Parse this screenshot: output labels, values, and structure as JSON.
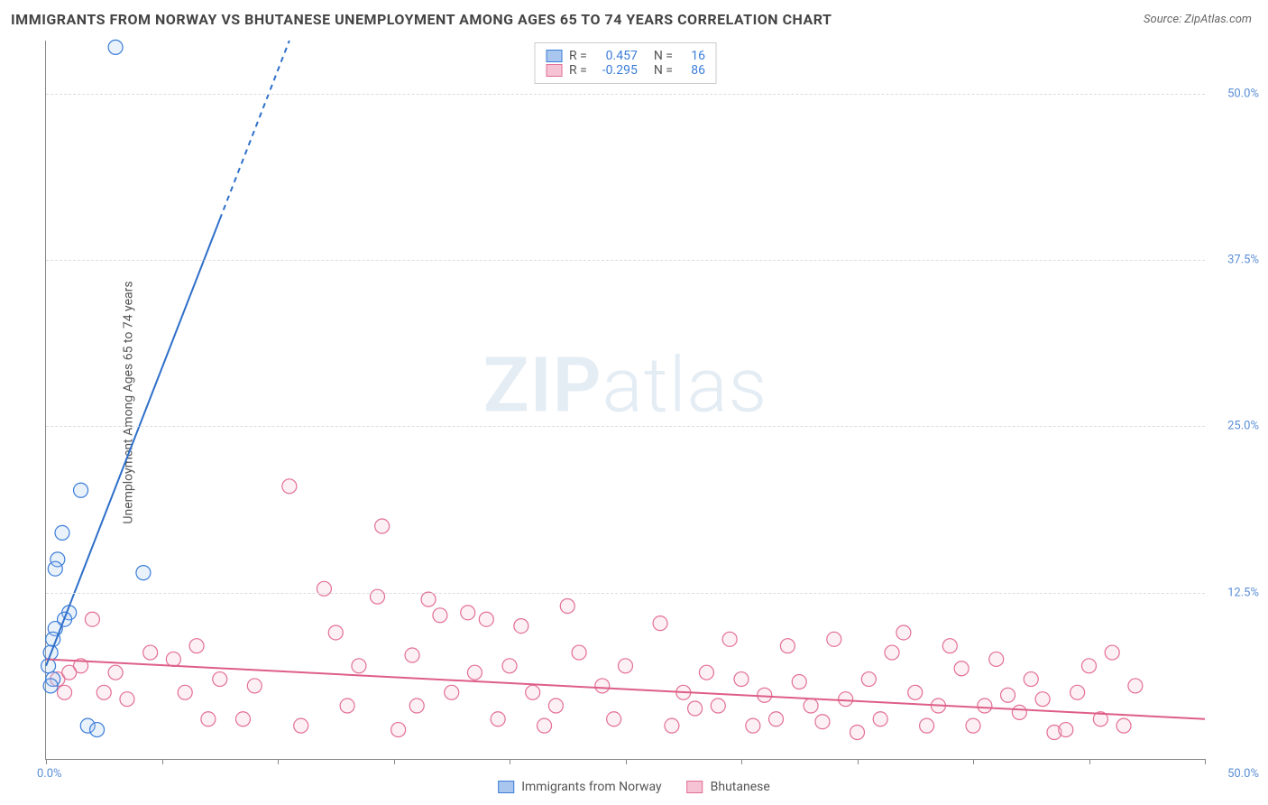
{
  "title": "IMMIGRANTS FROM NORWAY VS BHUTANESE UNEMPLOYMENT AMONG AGES 65 TO 74 YEARS CORRELATION CHART",
  "source": "Source: ZipAtlas.com",
  "ylabel": "Unemployment Among Ages 65 to 74 years",
  "watermark_a": "ZIP",
  "watermark_b": "atlas",
  "chart": {
    "type": "scatter",
    "background_color": "#ffffff",
    "grid_color": "#dddddd",
    "axis_color": "#888888",
    "xlim": [
      0,
      50
    ],
    "ylim": [
      0,
      54
    ],
    "x_ticks": [
      0,
      5,
      10,
      15,
      20,
      25,
      30,
      35,
      40,
      45,
      50
    ],
    "x_tick_labels": {
      "start": "0.0%",
      "end": "50.0%"
    },
    "y_gridlines": [
      12.5,
      25.0,
      37.5,
      50.0
    ],
    "y_tick_labels": [
      "12.5%",
      "25.0%",
      "37.5%",
      "50.0%"
    ],
    "marker_radius": 8,
    "marker_fill_opacity": 0.25,
    "marker_stroke_width": 1.2,
    "line_width": 2
  },
  "series": {
    "norway": {
      "label": "Immigrants from Norway",
      "color_stroke": "#3b7dd8",
      "color_fill": "#a9c7ee",
      "line_color": "#2e6fc9",
      "R": "0.457",
      "N": "16",
      "trend": {
        "x1": 0,
        "y1": 7.0,
        "x2": 10.5,
        "y2": 54.0,
        "dashed_from_x": 7.5
      },
      "points": [
        [
          3.0,
          53.5
        ],
        [
          1.5,
          20.2
        ],
        [
          0.7,
          17.0
        ],
        [
          0.5,
          15.0
        ],
        [
          0.4,
          14.3
        ],
        [
          4.2,
          14.0
        ],
        [
          1.0,
          11.0
        ],
        [
          0.8,
          10.5
        ],
        [
          0.4,
          9.8
        ],
        [
          0.3,
          9.0
        ],
        [
          0.2,
          8.0
        ],
        [
          0.1,
          7.0
        ],
        [
          0.3,
          6.0
        ],
        [
          1.8,
          2.5
        ],
        [
          2.2,
          2.2
        ],
        [
          0.2,
          5.5
        ]
      ]
    },
    "bhutanese": {
      "label": "Bhutanese",
      "color_stroke": "#e36f94",
      "color_fill": "#f5c3d3",
      "line_color": "#de5e87",
      "R": "-0.295",
      "N": "86",
      "trend": {
        "x1": 0,
        "y1": 7.5,
        "x2": 50,
        "y2": 3.0
      },
      "points": [
        [
          10.5,
          20.5
        ],
        [
          14.5,
          17.5
        ],
        [
          12.0,
          12.8
        ],
        [
          14.3,
          12.2
        ],
        [
          12.5,
          9.5
        ],
        [
          13.0,
          4.0
        ],
        [
          8.5,
          3.0
        ],
        [
          9.0,
          5.5
        ],
        [
          11.0,
          2.5
        ],
        [
          15.2,
          2.2
        ],
        [
          15.8,
          7.8
        ],
        [
          16.5,
          12.0
        ],
        [
          17.0,
          10.8
        ],
        [
          17.5,
          5.0
        ],
        [
          18.2,
          11.0
        ],
        [
          19.0,
          10.5
        ],
        [
          20.0,
          7.0
        ],
        [
          20.5,
          10.0
        ],
        [
          21.0,
          5.0
        ],
        [
          21.5,
          2.5
        ],
        [
          22.5,
          11.5
        ],
        [
          23.0,
          8.0
        ],
        [
          24.0,
          5.5
        ],
        [
          24.5,
          3.0
        ],
        [
          25.0,
          7.0
        ],
        [
          26.5,
          10.2
        ],
        [
          27.5,
          5.0
        ],
        [
          28.0,
          3.8
        ],
        [
          29.0,
          4.0
        ],
        [
          29.5,
          9.0
        ],
        [
          30.0,
          6.0
        ],
        [
          30.5,
          2.5
        ],
        [
          31.5,
          3.0
        ],
        [
          32.0,
          8.5
        ],
        [
          32.5,
          5.8
        ],
        [
          33.5,
          2.8
        ],
        [
          34.0,
          9.0
        ],
        [
          34.5,
          4.5
        ],
        [
          35.5,
          6.0
        ],
        [
          36.0,
          3.0
        ],
        [
          36.5,
          8.0
        ],
        [
          37.5,
          5.0
        ],
        [
          38.5,
          4.0
        ],
        [
          39.0,
          8.5
        ],
        [
          39.5,
          6.8
        ],
        [
          40.0,
          2.5
        ],
        [
          40.5,
          4.0
        ],
        [
          41.0,
          7.5
        ],
        [
          42.0,
          3.5
        ],
        [
          42.5,
          6.0
        ],
        [
          43.0,
          4.5
        ],
        [
          43.5,
          2.0
        ],
        [
          44.5,
          5.0
        ],
        [
          45.0,
          7.0
        ],
        [
          45.5,
          3.0
        ],
        [
          46.0,
          8.0
        ],
        [
          46.5,
          2.5
        ],
        [
          47.0,
          5.5
        ],
        [
          2.0,
          10.5
        ],
        [
          4.5,
          8.0
        ],
        [
          3.0,
          6.5
        ],
        [
          5.5,
          7.5
        ],
        [
          6.0,
          5.0
        ],
        [
          6.5,
          8.5
        ],
        [
          7.0,
          3.0
        ],
        [
          7.5,
          6.0
        ],
        [
          2.5,
          5.0
        ],
        [
          1.5,
          7.0
        ],
        [
          0.5,
          6.0
        ],
        [
          0.8,
          5.0
        ],
        [
          1.0,
          6.5
        ],
        [
          3.5,
          4.5
        ],
        [
          37.0,
          9.5
        ],
        [
          38.0,
          2.5
        ],
        [
          33.0,
          4.0
        ],
        [
          27.0,
          2.5
        ],
        [
          19.5,
          3.0
        ],
        [
          16.0,
          4.0
        ],
        [
          35.0,
          2.0
        ],
        [
          31.0,
          4.8
        ],
        [
          28.5,
          6.5
        ],
        [
          44.0,
          2.2
        ],
        [
          41.5,
          4.8
        ],
        [
          22.0,
          4.0
        ],
        [
          18.5,
          6.5
        ],
        [
          13.5,
          7.0
        ]
      ]
    }
  },
  "legend_top": {
    "r_label": "R =",
    "n_label": "N ="
  }
}
